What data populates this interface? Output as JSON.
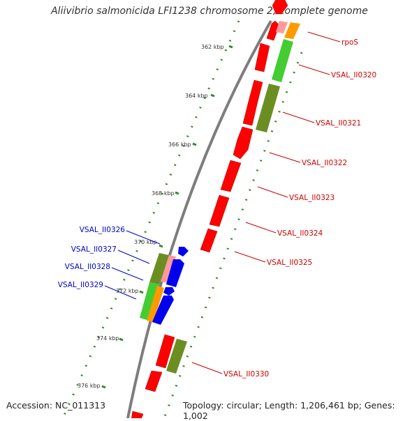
{
  "title": "Aliivibrio salmonicida LFI1238 chromosome 2, complete genome",
  "footer": {
    "accession": "Accession: NC_011313",
    "summary": "Topology: circular; Length: 1,206,461 bp; Genes: 1,002"
  },
  "colors": {
    "backbone": "#8a8a8a",
    "tick": "#2e8b2e",
    "forward_label": "#cc0000",
    "reverse_label": "#0000cc",
    "gene_red": "#ff0000",
    "gene_olive": "#6b8e23",
    "gene_green": "#44cc33",
    "gene_orange": "#ff9900",
    "gene_pink": "#ff9999",
    "gene_blue": "#0000ee"
  },
  "scale_labels": [
    "362 kbp",
    "364 kbp",
    "366 kbp",
    "368 kbp",
    "370 kbp",
    "372 kbp",
    "374 kbp",
    "376 kbp"
  ],
  "gene_labels_right": [
    "rpoS",
    "VSAL_II0320",
    "VSAL_II0321",
    "VSAL_II0322",
    "VSAL_II0323",
    "VSAL_II0324",
    "VSAL_II0325",
    "VSAL_II0330"
  ],
  "gene_labels_left": [
    "VSAL_II0326",
    "VSAL_II0327",
    "VSAL_II0328",
    "VSAL_II0329"
  ]
}
